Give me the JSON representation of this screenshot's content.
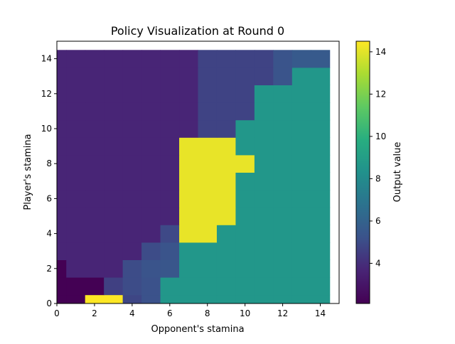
{
  "chart_data": {
    "type": "heatmap",
    "title": "Policy Visualization at Round 0",
    "xlabel": "Opponent's stamina",
    "ylabel": "Player's stamina",
    "xlim": [
      0,
      15
    ],
    "ylim": [
      0,
      15
    ],
    "x_ticks": [
      0,
      2,
      4,
      6,
      8,
      10,
      12,
      14
    ],
    "y_ticks": [
      0,
      2,
      4,
      6,
      8,
      10,
      12,
      14
    ],
    "colorbar": {
      "label": "Output value",
      "range": [
        2.1,
        14.5
      ],
      "ticks": [
        4,
        6,
        8,
        10,
        12,
        14
      ],
      "colormap": "viridis"
    },
    "grid": false,
    "note_rows": "values[r] is row for Player's stamina r (0 bottom .. 14 top) spanning r-0.5..r+0.5; values[r][c] for Opponent's stamina c",
    "values": [
      [
        2.1,
        2.1,
        14.5,
        14.5,
        4.8,
        5.2,
        8.6,
        8.6,
        8.6,
        8.6,
        8.6,
        8.6,
        8.6,
        8.6,
        8.6
      ],
      [
        2.1,
        2.1,
        2.1,
        4.6,
        5.0,
        5.2,
        8.6,
        8.6,
        8.6,
        8.6,
        8.6,
        8.6,
        8.6,
        8.6,
        8.6
      ],
      [
        2.1,
        3.7,
        3.7,
        3.7,
        5.0,
        5.3,
        5.4,
        8.6,
        8.6,
        8.6,
        8.6,
        8.6,
        8.6,
        8.6,
        8.6
      ],
      [
        3.7,
        3.7,
        3.7,
        3.7,
        3.7,
        5.0,
        5.3,
        8.6,
        8.6,
        8.6,
        8.6,
        8.6,
        8.6,
        8.6,
        8.6
      ],
      [
        3.7,
        3.7,
        3.7,
        3.7,
        3.7,
        3.7,
        4.9,
        14.1,
        14.1,
        8.6,
        8.6,
        8.6,
        8.6,
        8.6,
        8.6
      ],
      [
        3.7,
        3.7,
        3.7,
        3.7,
        3.7,
        3.7,
        3.7,
        14.1,
        14.1,
        14.1,
        8.6,
        8.6,
        8.6,
        8.6,
        8.6
      ],
      [
        3.7,
        3.7,
        3.7,
        3.7,
        3.7,
        3.7,
        3.7,
        14.1,
        14.1,
        14.1,
        8.6,
        8.6,
        8.6,
        8.6,
        8.6
      ],
      [
        3.7,
        3.7,
        3.7,
        3.7,
        3.7,
        3.7,
        3.7,
        14.1,
        14.1,
        14.1,
        8.6,
        8.6,
        8.6,
        8.6,
        8.6
      ],
      [
        3.7,
        3.7,
        3.7,
        3.7,
        3.7,
        3.7,
        3.7,
        14.1,
        14.1,
        14.1,
        14.1,
        8.6,
        8.6,
        8.6,
        8.6
      ],
      [
        3.7,
        3.7,
        3.7,
        3.7,
        3.7,
        3.7,
        3.7,
        14.1,
        14.1,
        14.1,
        8.6,
        8.6,
        8.6,
        8.6,
        8.6
      ],
      [
        3.7,
        3.7,
        3.7,
        3.7,
        3.7,
        3.7,
        3.7,
        3.7,
        4.7,
        4.7,
        8.6,
        8.6,
        8.6,
        8.6,
        8.6
      ],
      [
        3.7,
        3.7,
        3.7,
        3.7,
        3.7,
        3.7,
        3.7,
        3.7,
        4.7,
        4.7,
        4.7,
        8.6,
        8.6,
        8.6,
        8.6
      ],
      [
        3.7,
        3.7,
        3.7,
        3.7,
        3.7,
        3.7,
        3.7,
        3.7,
        4.7,
        4.7,
        4.7,
        8.6,
        8.6,
        8.6,
        8.6
      ],
      [
        3.7,
        3.7,
        3.7,
        3.7,
        3.7,
        3.7,
        3.7,
        3.7,
        4.7,
        4.7,
        4.7,
        4.7,
        5.3,
        8.6,
        8.6
      ],
      [
        3.7,
        3.7,
        3.7,
        3.7,
        3.7,
        3.7,
        3.7,
        3.7,
        4.7,
        4.7,
        4.7,
        4.7,
        5.3,
        5.6,
        5.6
      ]
    ]
  }
}
